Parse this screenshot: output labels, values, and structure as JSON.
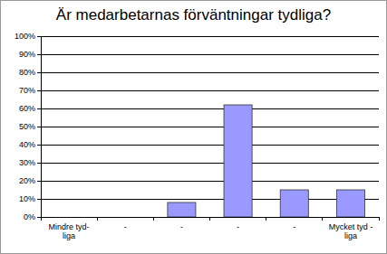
{
  "chart_data": {
    "type": "bar",
    "title": "Är medarbetarnas förväntningar tydliga?",
    "categories": [
      "Mindre tyd-\nliga",
      "-",
      "-",
      "-",
      "-",
      "Mycket tyd -\nliga"
    ],
    "values": [
      0,
      0,
      8,
      62,
      15,
      15
    ],
    "color": "#9999ff",
    "ylim": [
      0,
      100
    ],
    "yticks": [
      {
        "value": 0,
        "label": "0%"
      },
      {
        "value": 10,
        "label": "10%"
      },
      {
        "value": 20,
        "label": "20%"
      },
      {
        "value": 30,
        "label": "30%"
      },
      {
        "value": 40,
        "label": "40%"
      },
      {
        "value": 50,
        "label": "50%"
      },
      {
        "value": 60,
        "label": "60%"
      },
      {
        "value": 70,
        "label": "70%"
      },
      {
        "value": 80,
        "label": "80%"
      },
      {
        "value": 90,
        "label": "90%"
      },
      {
        "value": 100,
        "label": "100%"
      }
    ],
    "grid": true
  }
}
